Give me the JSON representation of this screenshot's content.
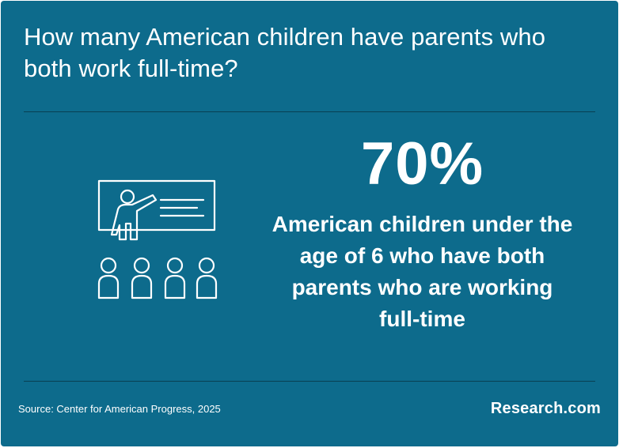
{
  "title": "How many American children have parents who both work full-time?",
  "stat": {
    "value": "70%",
    "description": "American children under the age of 6 who have both parents who are working full-time"
  },
  "illustration": {
    "icon": "classroom-presentation-icon"
  },
  "footer": {
    "source": "Source: Center for American Progress, 2025",
    "brand": "Research.com"
  },
  "colors": {
    "background": "#0d6b8c",
    "text": "#ffffff",
    "divider": "#083f52"
  }
}
